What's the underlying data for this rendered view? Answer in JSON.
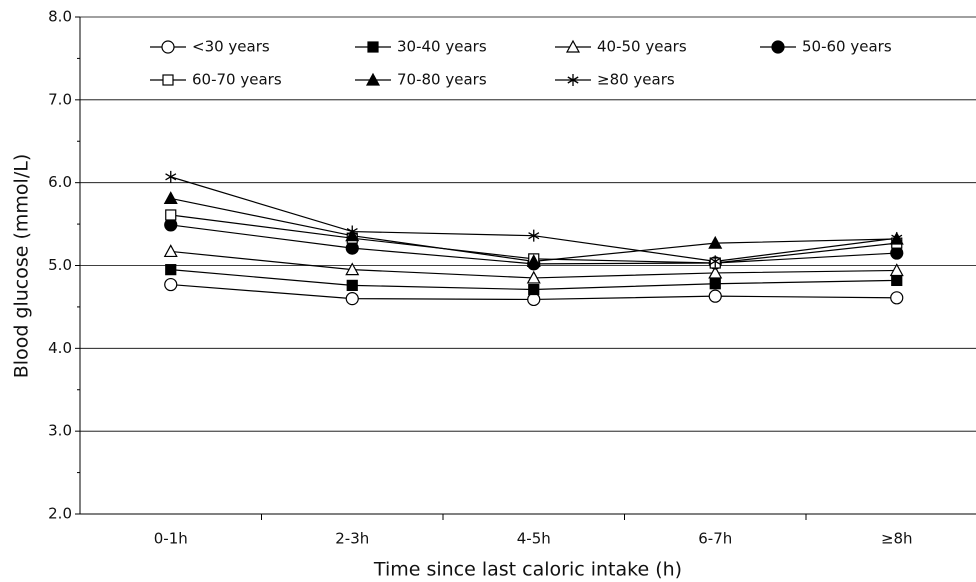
{
  "chart_data": {
    "type": "line",
    "y_label": "Blood glucose (mmol/L)",
    "x_label": "Time since last caloric intake (h)",
    "categories": [
      "0-1h",
      "2-3h",
      "4-5h",
      "6-7h",
      "≥8h"
    ],
    "series": [
      {
        "name": "<30 years",
        "color": "#000000",
        "marker": "circle-open",
        "values": [
          4.77,
          4.6,
          4.59,
          4.63,
          4.61
        ]
      },
      {
        "name": "30-40 years",
        "color": "#000000",
        "marker": "square-filled",
        "values": [
          4.95,
          4.76,
          4.71,
          4.78,
          4.82
        ]
      },
      {
        "name": "40-50 years",
        "color": "#000000",
        "marker": "triangle-open",
        "values": [
          5.17,
          4.95,
          4.85,
          4.91,
          4.94
        ]
      },
      {
        "name": "50-60 years",
        "color": "#000000",
        "marker": "circle-filled",
        "values": [
          5.49,
          5.21,
          5.02,
          5.03,
          5.15
        ]
      },
      {
        "name": "60-70 years",
        "color": "#000000",
        "marker": "square-open",
        "values": [
          5.61,
          5.33,
          5.08,
          5.03,
          5.27
        ]
      },
      {
        "name": "70-80 years",
        "color": "#000000",
        "marker": "triangle-filled",
        "values": [
          5.81,
          5.36,
          5.05,
          5.27,
          5.32
        ]
      },
      {
        "name": "≥80 years",
        "color": "#000000",
        "marker": "asterisk",
        "values": [
          6.07,
          5.41,
          5.36,
          5.05,
          5.33
        ]
      }
    ],
    "ylim": [
      2,
      8
    ],
    "yticks": [
      {
        "value": 2,
        "label": "2.0"
      },
      {
        "value": 3,
        "label": "3.0"
      },
      {
        "value": 4,
        "label": "4.0"
      },
      {
        "value": 5,
        "label": "5.0"
      },
      {
        "value": 6,
        "label": "6.0"
      },
      {
        "value": 7,
        "label": "7.0"
      },
      {
        "value": 8,
        "label": "8.0"
      }
    ],
    "grid": true
  }
}
